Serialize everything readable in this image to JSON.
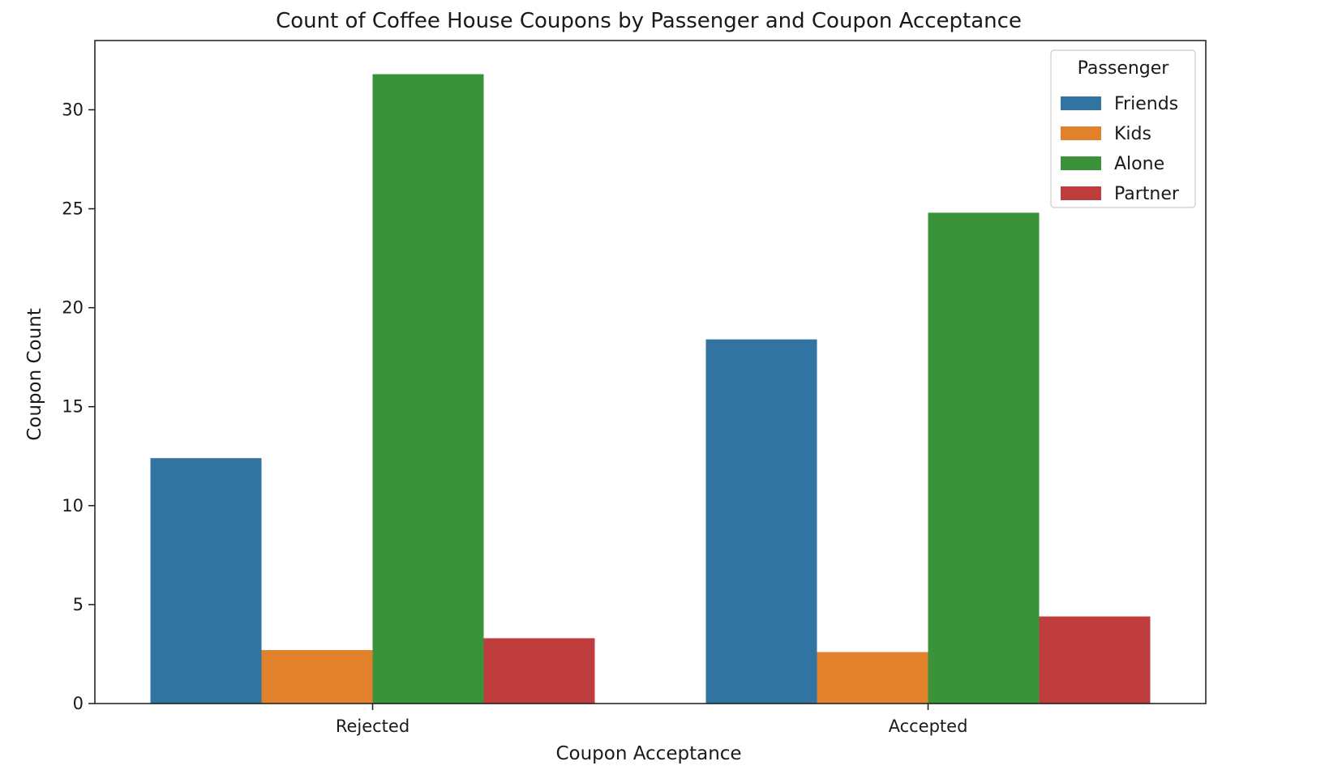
{
  "chart_data": {
    "type": "bar",
    "title": "Count of Coffee House Coupons by Passenger and Coupon Acceptance",
    "xlabel": "Coupon Acceptance",
    "ylabel": "Coupon Count",
    "categories": [
      "Rejected",
      "Accepted"
    ],
    "series": [
      {
        "name": "Friends",
        "color": "#3274a1",
        "values": [
          12.4,
          18.4
        ]
      },
      {
        "name": "Kids",
        "color": "#e1812c",
        "values": [
          2.7,
          2.6
        ]
      },
      {
        "name": "Alone",
        "color": "#3a923a",
        "values": [
          31.8,
          24.8
        ]
      },
      {
        "name": "Partner",
        "color": "#c03d3e",
        "values": [
          3.3,
          4.4
        ]
      }
    ],
    "ylim": [
      0,
      33.5
    ],
    "yticks": [
      0,
      5,
      10,
      15,
      20,
      25,
      30
    ],
    "grid": false,
    "legend": {
      "title": "Passenger",
      "position": "top-right"
    }
  }
}
